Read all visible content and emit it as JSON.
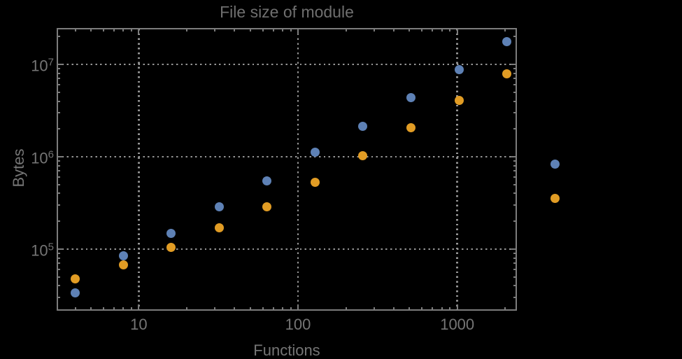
{
  "figure": {
    "background_color": "#000000",
    "frame_color": "#7c7c7c",
    "grid_color": "#959595",
    "text_color": "#757575"
  },
  "chart_data": {
    "type": "scatter",
    "title": "File size of module",
    "xlabel": "Functions",
    "ylabel": "Bytes",
    "x_scale": "log",
    "y_scale": "log",
    "xlim": [
      3.05,
      2370
    ],
    "ylim": [
      21500,
      24800000
    ],
    "grid": "dotted lines at decades, both axes",
    "legend": "none",
    "x": [
      4,
      8,
      16,
      32,
      64,
      128,
      256,
      512,
      1024,
      2048,
      4096
    ],
    "series": [
      {
        "name": "series-blue",
        "color": "#5e81b5",
        "values": [
          33300,
          84000,
          149000,
          285000,
          543000,
          1115000,
          2150000,
          4400000,
          8850000,
          17500000,
          826000
        ]
      },
      {
        "name": "series-orange",
        "color": "#e19c24",
        "values": [
          47200,
          68000,
          103500,
          168800,
          285000,
          533000,
          1020000,
          2050000,
          4040000,
          7970000,
          357000
        ]
      }
    ],
    "x_tick_values": [
      10,
      100,
      1000
    ],
    "x_tick_labels": [
      "10",
      "100",
      "1000"
    ],
    "y_tick_values": [
      100000,
      1000000,
      10000000
    ],
    "y_tick_labels": [
      {
        "base": "10",
        "exp": "5"
      },
      {
        "base": "10",
        "exp": "6"
      },
      {
        "base": "10",
        "exp": "7"
      }
    ]
  }
}
